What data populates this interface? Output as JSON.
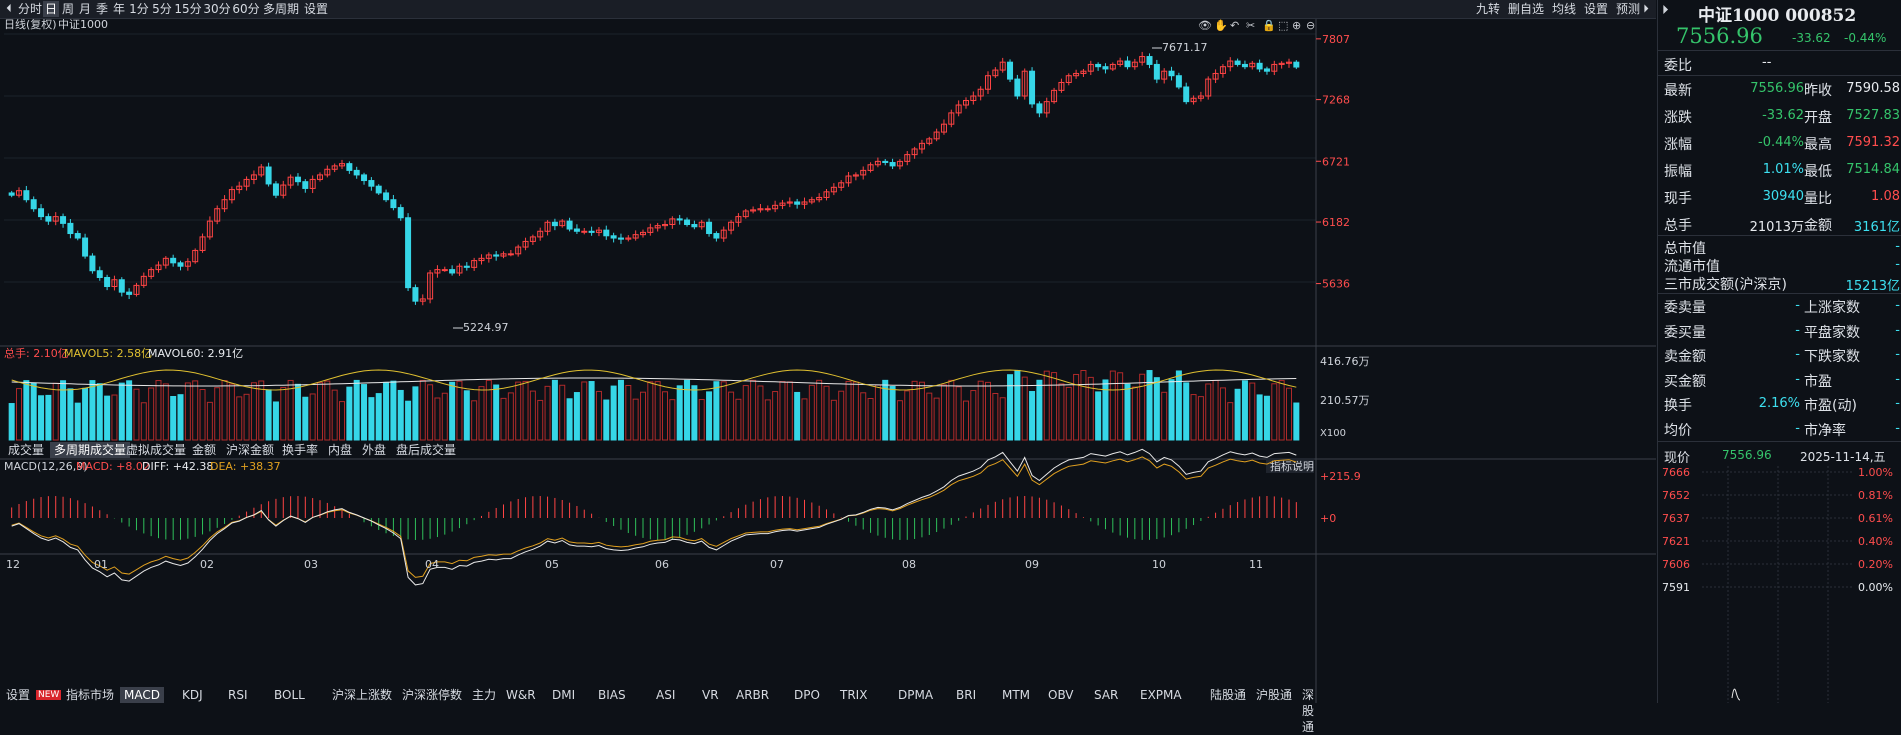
{
  "toolbar": {
    "left_items": [
      "分时",
      "日",
      "周",
      "月",
      "季",
      "年",
      "1分",
      "5分",
      "15分",
      "30分",
      "60分",
      "多周期",
      "设置"
    ],
    "active": "日",
    "right_items": [
      "九转",
      "删自选",
      "均线",
      "设置",
      "预测"
    ]
  },
  "chart_header": {
    "mode": "日线(复权)",
    "index_name": "中证1000"
  },
  "price_axis": {
    "ticks": [
      "7807",
      "7268",
      "6721",
      "6182",
      "5636"
    ]
  },
  "annotations": {
    "high_label": "7671.17",
    "low_label": "5224.97"
  },
  "volume_header": {
    "total_label": "总手: 2.10亿",
    "mavol5": "MAVOL5: 2.58亿",
    "mavol60": "MAVOL60: 2.91亿"
  },
  "volume_axis": {
    "ticks": [
      "416.76万",
      "210.57万"
    ],
    "unit": "X100"
  },
  "volume_tabs": [
    "成交量",
    "多周期成交量",
    "虚拟成交量",
    "金额",
    "沪深金额",
    "换手率",
    "内盘",
    "外盘",
    "盘后成交量"
  ],
  "volume_tab_active": "多周期成交量",
  "macd_header": {
    "name": "MACD(12,26,9)",
    "macd": "MACD: +8.02",
    "diff": "DIFF: +42.38",
    "dea": "DEA: +38.37"
  },
  "macd_axis": {
    "ticks": [
      "+215.9",
      "+0"
    ]
  },
  "indicator_button": "指标说明",
  "month_labels": [
    "12",
    "01",
    "02",
    "03",
    "04",
    "05",
    "06",
    "07",
    "08",
    "09",
    "10",
    "11"
  ],
  "bottom_tabs": [
    "设置",
    "NEW",
    "指标市场",
    "MACD",
    "KDJ",
    "RSI",
    "BOLL",
    "沪深上涨数",
    "沪深涨停数",
    "主力",
    "W&R",
    "DMI",
    "BIAS",
    "ASI",
    "VR",
    "ARBR",
    "DPO",
    "TRIX",
    "DPMA",
    "BRI",
    "MTM",
    "OBV",
    "SAR",
    "EXPMA",
    "陆股通",
    "沪股通",
    "深股通"
  ],
  "right_panel": {
    "title": "中证1000 000852",
    "price": "7556.96",
    "change": "-33.62",
    "change_pct": "-0.44%",
    "weibi_label": "委比",
    "weibi_value": "--",
    "rows": [
      {
        "l1": "最新",
        "v1": "7556.96",
        "c1": "green",
        "l2": "昨收",
        "v2": "7590.58",
        "c2": "white"
      },
      {
        "l1": "涨跌",
        "v1": "-33.62",
        "c1": "green",
        "l2": "开盘",
        "v2": "7527.83",
        "c2": "green"
      },
      {
        "l1": "涨幅",
        "v1": "-0.44%",
        "c1": "green",
        "l2": "最高",
        "v2": "7591.32",
        "c2": "red"
      },
      {
        "l1": "振幅",
        "v1": "1.01%",
        "c1": "cyan",
        "l2": "最低",
        "v2": "7514.84",
        "c2": "green"
      },
      {
        "l1": "现手",
        "v1": "30940",
        "c1": "cyan",
        "l2": "量比",
        "v2": "1.08",
        "c2": "red"
      },
      {
        "l1": "总手",
        "v1": "21013万",
        "c1": "white",
        "l2": "金额",
        "v2": "3161亿",
        "c2": "cyan"
      }
    ],
    "market_rows": [
      {
        "l": "总市值",
        "v": "-"
      },
      {
        "l": "流通市值",
        "v": "-"
      },
      {
        "l": "三市成交额(沪深京)",
        "v": "15213亿"
      }
    ],
    "breadth_rows": [
      {
        "l1": "委卖量",
        "v1": "-",
        "l2": "上涨家数",
        "v2": "-"
      },
      {
        "l1": "委买量",
        "v1": "-",
        "l2": "平盘家数",
        "v2": "-"
      },
      {
        "l1": "卖金额",
        "v1": "-",
        "l2": "下跌家数",
        "v2": "-"
      },
      {
        "l1": "买金额",
        "v1": "-",
        "l2": "市盈",
        "v2": "-"
      },
      {
        "l1": "换手",
        "v1": "2.16%",
        "l2": "市盈(动)",
        "v2": "-"
      },
      {
        "l1": "均价",
        "v1": "-",
        "l2": "市净率",
        "v2": "-"
      }
    ],
    "mini_header": {
      "label": "现价",
      "price": "7556.96",
      "date": "2025-11-14,五"
    },
    "mini_ticks": [
      {
        "p": "7666",
        "pct": "1.00%"
      },
      {
        "p": "7652",
        "pct": "0.81%"
      },
      {
        "p": "7637",
        "pct": "0.61%"
      },
      {
        "p": "7621",
        "pct": "0.40%"
      },
      {
        "p": "7606",
        "pct": "0.20%"
      },
      {
        "p": "7591",
        "pct": "0.00%"
      }
    ]
  },
  "colors": {
    "up": "#ff4444",
    "down": "#36d6e7",
    "bg": "#0d1117",
    "ma_white": "#e8e8e8",
    "ma_yellow": "#e0a020",
    "grid": "#1f2630"
  },
  "chart_data": {
    "type": "candlestick",
    "months": [
      "12",
      "01",
      "02",
      "03",
      "04",
      "05",
      "06",
      "07",
      "08",
      "09",
      "10",
      "11"
    ],
    "close": [
      6420,
      6460,
      6380,
      6300,
      6230,
      6190,
      6230,
      6170,
      6080,
      6040,
      5880,
      5750,
      5690,
      5610,
      5670,
      5560,
      5540,
      5620,
      5700,
      5760,
      5800,
      5860,
      5820,
      5790,
      5830,
      5930,
      6050,
      6190,
      6300,
      6380,
      6470,
      6500,
      6560,
      6600,
      6670,
      6520,
      6420,
      6510,
      6580,
      6540,
      6480,
      6560,
      6600,
      6650,
      6680,
      6700,
      6640,
      6600,
      6550,
      6500,
      6440,
      6380,
      6310,
      6220,
      5600,
      5480,
      5500,
      5730,
      5760,
      5760,
      5730,
      5790,
      5780,
      5840,
      5860,
      5890,
      5880,
      5900,
      5900,
      5960,
      6010,
      6050,
      6100,
      6180,
      6150,
      6190,
      6120,
      6100,
      6100,
      6090,
      6110,
      6060,
      6040,
      6030,
      6040,
      6070,
      6090,
      6130,
      6150,
      6160,
      6210,
      6200,
      6160,
      6140,
      6180,
      6080,
      6040,
      6110,
      6180,
      6230,
      6280,
      6290,
      6300,
      6300,
      6330,
      6350,
      6360,
      6340,
      6360,
      6380,
      6400,
      6450,
      6490,
      6530,
      6590,
      6600,
      6640,
      6690,
      6720,
      6710,
      6680,
      6720,
      6780,
      6830,
      6880,
      6920,
      6980,
      7050,
      7150,
      7220,
      7260,
      7300,
      7360,
      7480,
      7530,
      7600,
      7450,
      7300,
      7520,
      7230,
      7150,
      7250,
      7350,
      7420,
      7480,
      7500,
      7520,
      7580,
      7560,
      7540,
      7580,
      7610,
      7560,
      7600,
      7650,
      7580,
      7450,
      7520,
      7480,
      7380,
      7250,
      7280,
      7300,
      7450,
      7500,
      7560,
      7610,
      7580,
      7560,
      7590,
      7540,
      7520,
      7580,
      7590,
      7600,
      7557
    ],
    "y_range": [
      5100,
      7850
    ]
  }
}
